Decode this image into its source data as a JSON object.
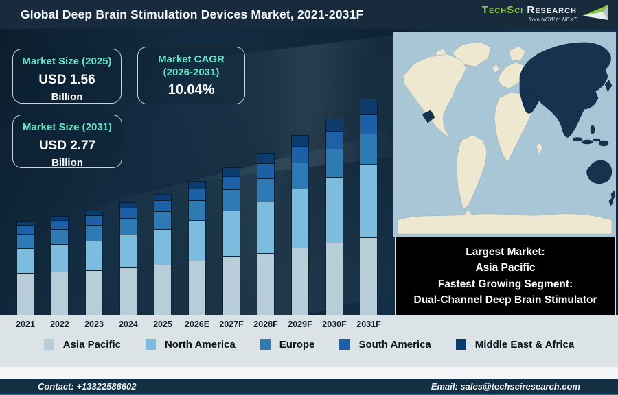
{
  "header": {
    "title": "Global Deep Brain Stimulation Devices Market, 2021-2031F",
    "logo": {
      "brand_primary": "TechSci",
      "brand_secondary": "Research",
      "tagline": "from NOW to NEXT"
    }
  },
  "info_boxes": [
    {
      "label": "Market Size (2025)",
      "value": "USD 1.56",
      "unit": "Billion"
    },
    {
      "label": "Market CAGR (2026-2031)",
      "value": "10.04%"
    },
    {
      "label": "Market Size (2031)",
      "value": "USD 2.77",
      "unit": "Billion"
    }
  ],
  "map_caption": [
    "Largest Market:",
    "Asia Pacific",
    "Fastest Growing Segment:",
    "Dual-Channel Deep Brain Stimulator"
  ],
  "chart_data": {
    "type": "bar",
    "stacked": true,
    "title": "Global Deep Brain Stimulation Devices Market, 2021-2031F",
    "unit": "USD Billion",
    "legend_position": "bottom",
    "value_axis_visible": false,
    "ylim": [
      0,
      3
    ],
    "categories": [
      "2021",
      "2022",
      "2023",
      "2024",
      "2025",
      "2026E",
      "2027F",
      "2028F",
      "2029F",
      "2030F",
      "2031F"
    ],
    "series": [
      {
        "name": "Asia Pacific",
        "color": "#b7cdd8",
        "values": [
          0.54,
          0.56,
          0.58,
          0.61,
          0.65,
          0.7,
          0.75,
          0.8,
          0.87,
          0.93,
          1.0
        ]
      },
      {
        "name": "North America",
        "color": "#7cbcde",
        "values": [
          0.32,
          0.35,
          0.38,
          0.42,
          0.46,
          0.52,
          0.59,
          0.66,
          0.75,
          0.84,
          0.94
        ]
      },
      {
        "name": "Europe",
        "color": "#2d7ab4",
        "values": [
          0.18,
          0.19,
          0.2,
          0.21,
          0.23,
          0.25,
          0.27,
          0.3,
          0.33,
          0.36,
          0.39
        ]
      },
      {
        "name": "South America",
        "color": "#1d60a8",
        "values": [
          0.11,
          0.11,
          0.12,
          0.13,
          0.14,
          0.15,
          0.17,
          0.19,
          0.21,
          0.23,
          0.25
        ]
      },
      {
        "name": "Middle East & Africa",
        "color": "#0c3c6e",
        "values": [
          0.05,
          0.05,
          0.06,
          0.07,
          0.08,
          0.1,
          0.11,
          0.13,
          0.14,
          0.16,
          0.19
        ]
      }
    ],
    "totals": [
      1.2,
      1.26,
      1.34,
      1.44,
      1.56,
      1.72,
      1.89,
      2.08,
      2.3,
      2.52,
      2.77
    ],
    "annotations": {
      "market_size_2025": "USD 1.56 Billion",
      "market_cagr_2026_2031": "10.04%",
      "market_size_2031": "USD 2.77 Billion",
      "largest_market": "Asia Pacific",
      "fastest_growing_segment": "Dual-Channel Deep Brain Stimulator"
    }
  },
  "footer": {
    "contact": "Contact: +13322586602",
    "email": "Email: sales@techsciresearch.com"
  },
  "colors": {
    "accent_teal": "#68e4c6",
    "header_bg": "#172b3c",
    "strip_bg": "#dce3e7",
    "white_strip": "#f4f6f7",
    "footer_bg": "#123041",
    "footer_edge": "#2d6a8a",
    "box_border": "#c9d4db",
    "logo_green": "#8dc63f"
  },
  "map": {
    "ocean": "#a9c6d6",
    "land": "#efe8d1",
    "highlight": "#16324f",
    "caption_bg": "#000000"
  }
}
